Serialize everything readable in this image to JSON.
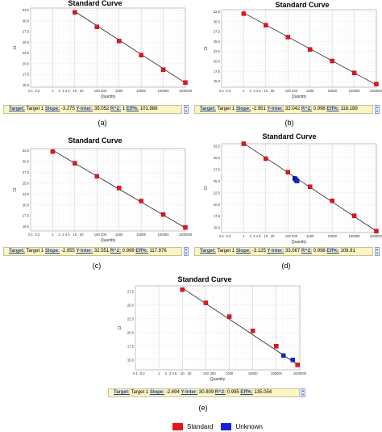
{
  "chart_data": [
    {
      "type": "scatter",
      "panel_label": "(a)",
      "title": "Standard Curve",
      "xlabel": "Quantity",
      "ylabel": "Ct",
      "xscale": "log",
      "xlim": [
        0.1,
        1000000
      ],
      "ylim": [
        14.5,
        33
      ],
      "xticks": [
        "0.1",
        "0.2",
        "1",
        "2",
        "3 4 5",
        "10",
        "20",
        "100",
        "200",
        "1000",
        "10000",
        "100000",
        "1000000"
      ],
      "yticks": [
        "15.0",
        "17.5",
        "20.0",
        "22.5",
        "25.0",
        "27.5",
        "30.0",
        "32.5"
      ],
      "grid": true,
      "series": [
        {
          "name": "Standard",
          "color": "#e8141c",
          "x": [
            10,
            100,
            1000,
            10000,
            100000,
            1000000
          ],
          "y": [
            32.0,
            28.6,
            25.3,
            22.0,
            18.6,
            15.6
          ]
        }
      ],
      "fit": {
        "x": [
          10,
          1000000
        ],
        "y": [
          32.2,
          15.5
        ]
      },
      "stats": {
        "target_label": "Target:",
        "target": "Target 1",
        "slope_label": "Slope:",
        "slope": "-3.275",
        "yinter_label": "Y-Inter:",
        "yinter": "35.052",
        "r2_label": "R^2:",
        "r2": "1",
        "eff_label": "Eff%:",
        "eff": "101.988"
      }
    },
    {
      "type": "scatter",
      "panel_label": "(b)",
      "title": "Standard Curve",
      "xlabel": "Quantity",
      "ylabel": "Ct",
      "xscale": "log",
      "xlim": [
        0.1,
        1000000
      ],
      "ylim": [
        13.5,
        33
      ],
      "xticks": [
        "0.1",
        "0.2",
        "1",
        "2",
        "3 4 5",
        "10",
        "20",
        "100",
        "200",
        "1000",
        "10000",
        "100000",
        "1000000"
      ],
      "yticks": [
        "15.0",
        "17.5",
        "20.0",
        "22.5",
        "25.0",
        "27.5",
        "30.0",
        "32.5"
      ],
      "grid": true,
      "series": [
        {
          "name": "Standard",
          "color": "#e8141c",
          "x": [
            1,
            10,
            100,
            1000,
            10000,
            100000,
            1000000
          ],
          "y": [
            32.0,
            29.1,
            26.1,
            23.0,
            20.1,
            17.1,
            14.3
          ]
        }
      ],
      "fit": {
        "x": [
          1,
          1000000
        ],
        "y": [
          32.2,
          14.1
        ]
      },
      "stats": {
        "target_label": "Target:",
        "target": "Target 1",
        "slope_label": "Slope:",
        "slope": "-2.951",
        "yinter_label": "Y-Inter:",
        "yinter": "32.042",
        "r2_label": "R^2:",
        "r2": "0.998",
        "eff_label": "Eff%:",
        "eff": "118.189"
      }
    },
    {
      "type": "scatter",
      "panel_label": "(c)",
      "title": "Standard Curve",
      "xlabel": "Quantity",
      "ylabel": "Ct",
      "xscale": "log",
      "xlim": [
        0.1,
        1000000
      ],
      "ylim": [
        14,
        33
      ],
      "xticks": [
        "0.1",
        "0.2",
        "1",
        "2",
        "3 4 5",
        "10",
        "20",
        "100",
        "200",
        "1000",
        "10000",
        "100000",
        "1000000"
      ],
      "yticks": [
        "15.0",
        "17.5",
        "20.0",
        "22.5",
        "25.0",
        "27.5",
        "30.0",
        "32.5"
      ],
      "grid": true,
      "series": [
        {
          "name": "Standard",
          "color": "#e8141c",
          "x": [
            1,
            10,
            100,
            1000,
            10000,
            100000,
            1000000
          ],
          "y": [
            32.3,
            29.6,
            26.6,
            23.9,
            20.9,
            17.8,
            14.8
          ]
        }
      ],
      "fit": {
        "x": [
          1,
          1000000
        ],
        "y": [
          32.6,
          14.7
        ]
      },
      "stats": {
        "target_label": "Target:",
        "target": "Target 1",
        "slope_label": "Slope:",
        "slope": "-2.955",
        "yinter_label": "Y-Inter:",
        "yinter": "32.551",
        "r2_label": "R^2:",
        "r2": "0.999",
        "eff_label": "Eff%:",
        "eff": "117.976"
      }
    },
    {
      "type": "scatter",
      "panel_label": "(d)",
      "title": "Standard Curve",
      "xlabel": "Quantity",
      "ylabel": "Ct",
      "xscale": "log",
      "xlim": [
        0.1,
        1000000
      ],
      "ylim": [
        14,
        33
      ],
      "xticks": [
        "0.1",
        "0.2",
        "1",
        "2",
        "3 4 5",
        "10",
        "20",
        "100",
        "200",
        "1000",
        "10000",
        "100000",
        "1000000"
      ],
      "yticks": [
        "15.0",
        "17.5",
        "20.0",
        "22.5",
        "25.0",
        "27.5",
        "30.0",
        "32.5"
      ],
      "grid": true,
      "series": [
        {
          "name": "Standard",
          "color": "#e8141c",
          "x": [
            1,
            10,
            100,
            1000,
            10000,
            100000,
            1000000
          ],
          "y": [
            33.0,
            29.8,
            26.9,
            23.8,
            20.8,
            17.6,
            14.3
          ]
        },
        {
          "name": "Unknown",
          "color": "#1224d8",
          "x": [
            200,
            220,
            240,
            260
          ],
          "y": [
            25.6,
            25.4,
            25.2,
            25.0
          ]
        }
      ],
      "fit": {
        "x": [
          1,
          1000000
        ],
        "y": [
          33.1,
          14.3
        ]
      },
      "stats": {
        "target_label": "Target:",
        "target": "Target 1",
        "slope_label": "Slope:",
        "slope": "-3.125",
        "yinter_label": "Y-Inter:",
        "yinter": "33.067",
        "r2_label": "R^2:",
        "r2": "0.998",
        "eff_label": "Eff%:",
        "eff": "108.91"
      }
    },
    {
      "type": "scatter",
      "panel_label": "(e)",
      "title": "Standard Curve",
      "xlabel": "Quantity",
      "ylabel": "Ct",
      "xscale": "log",
      "xlim": [
        0.1,
        1000000
      ],
      "ylim": [
        13.2,
        28.5
      ],
      "xticks": [
        "0.1",
        "0.2",
        "1",
        "2",
        "3 4 5",
        "10",
        "20",
        "100",
        "200",
        "1000",
        "10000",
        "100000",
        "1000000"
      ],
      "yticks": [
        "15.0",
        "17.5",
        "20.0",
        "22.5",
        "25.0",
        "27.5"
      ],
      "grid": true,
      "series": [
        {
          "name": "Standard",
          "color": "#e8141c",
          "x": [
            10,
            100,
            1000,
            10000,
            100000,
            800000
          ],
          "y": [
            27.8,
            25.4,
            22.9,
            20.3,
            17.5,
            14.1
          ]
        },
        {
          "name": "Unknown",
          "color": "#1224d8",
          "x": [
            200000,
            500000
          ],
          "y": [
            15.8,
            15.0
          ]
        }
      ],
      "fit": {
        "x": [
          10,
          1000000
        ],
        "y": [
          28.1,
          13.9
        ]
      },
      "stats": {
        "target_label": "Target:",
        "target": "Target 1",
        "slope_label": "Slope:",
        "slope": "-2.694",
        "yinter_label": "Y-Inter:",
        "yinter": "30.809",
        "r2_label": "R^2:",
        "r2": "0.995",
        "eff_label": "Eff%:",
        "eff": "135.054"
      }
    }
  ],
  "legend": [
    {
      "label": "Standard",
      "color": "#e8141c"
    },
    {
      "label": "Unknown",
      "color": "#1224d8"
    }
  ]
}
